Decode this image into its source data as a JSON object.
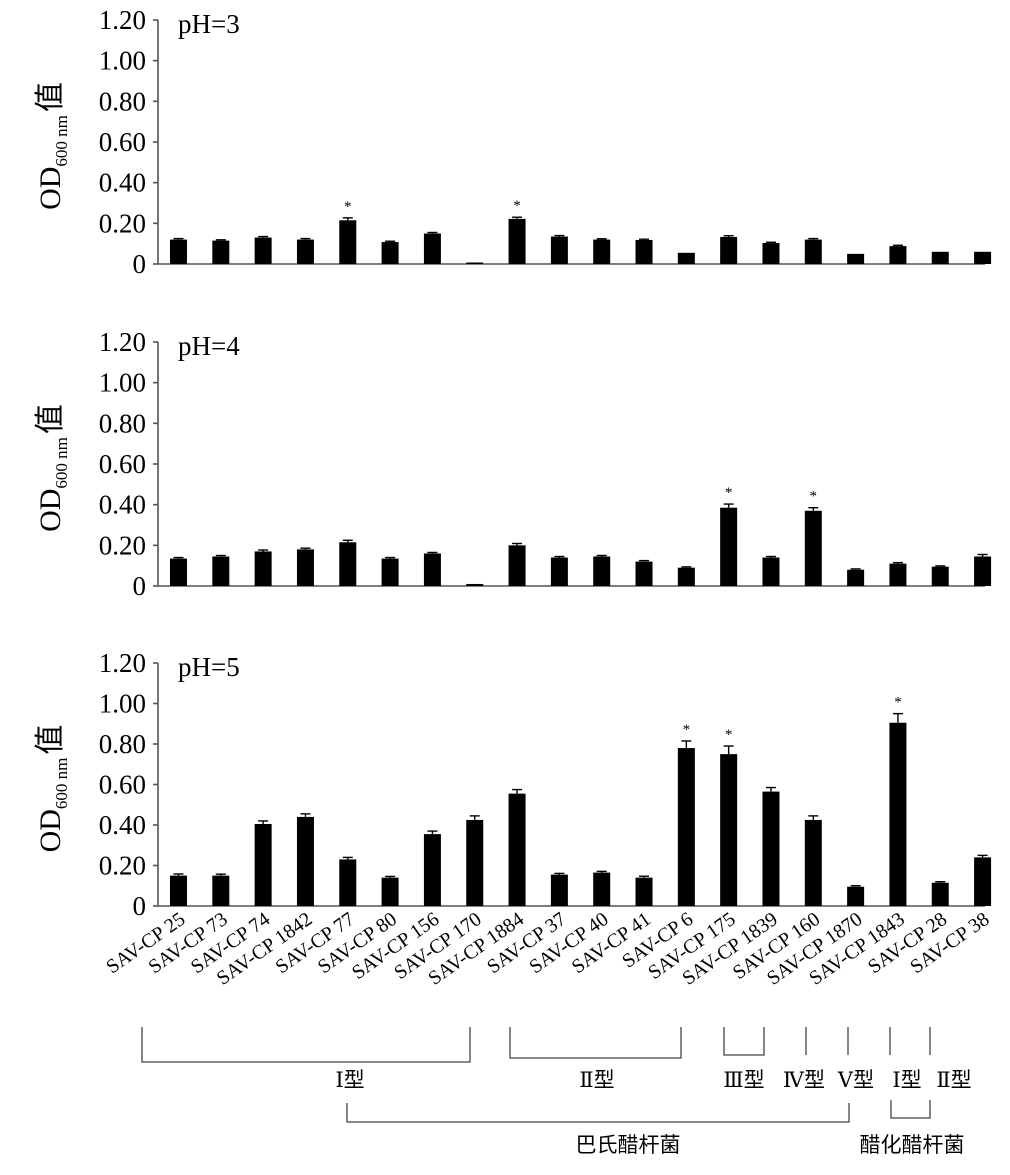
{
  "chart_data": {
    "type": "bar",
    "categories": [
      "SAV-CP 25",
      "SAV-CP 73",
      "SAV-CP 74",
      "SAV-CP 1842",
      "SAV-CP 77",
      "SAV-CP 80",
      "SAV-CP 156",
      "SAV-CP 170",
      "SAV-CP 1884",
      "SAV-CP 37",
      "SAV-CP 40",
      "SAV-CP 41",
      "SAV-CP 6",
      "SAV-CP 175",
      "SAV-CP 1839",
      "SAV-CP 160",
      "SAV-CP 1870",
      "SAV-CP 1843",
      "SAV-CP 28",
      "SAV-CP 38"
    ],
    "ylabel": {
      "main": "OD",
      "sub": "600 nm",
      "suffix": "值"
    },
    "yticks": [
      "0",
      "0.20",
      "0.40",
      "0.60",
      "0.80",
      "1.00",
      "1.20"
    ],
    "ylim": [
      0,
      1.2
    ],
    "grid": false,
    "significance_marker": "*",
    "panels": [
      {
        "label": "pH=3",
        "values": [
          0.12,
          0.115,
          0.13,
          0.12,
          0.215,
          0.108,
          0.15,
          0.005,
          0.222,
          0.135,
          0.12,
          0.118,
          0.055,
          0.133,
          0.103,
          0.12,
          0.05,
          0.088,
          0.06,
          0.06
        ],
        "errors": [
          0.005,
          0.004,
          0.005,
          0.005,
          0.012,
          0.004,
          0.005,
          0.002,
          0.008,
          0.005,
          0.004,
          0.004,
          0.003,
          0.006,
          0.004,
          0.005,
          0.003,
          0.004,
          0.003,
          0.003
        ],
        "significant": [
          4,
          8
        ]
      },
      {
        "label": "pH=4",
        "values": [
          0.135,
          0.145,
          0.17,
          0.18,
          0.215,
          0.135,
          0.16,
          0.01,
          0.2,
          0.14,
          0.145,
          0.12,
          0.09,
          0.385,
          0.14,
          0.37,
          0.08,
          0.11,
          0.095,
          0.145
        ],
        "errors": [
          0.005,
          0.005,
          0.007,
          0.006,
          0.01,
          0.005,
          0.005,
          0.002,
          0.009,
          0.005,
          0.005,
          0.005,
          0.004,
          0.018,
          0.005,
          0.015,
          0.004,
          0.005,
          0.004,
          0.01
        ],
        "significant": [
          13,
          15
        ]
      },
      {
        "label": "pH=5",
        "values": [
          0.15,
          0.15,
          0.405,
          0.44,
          0.23,
          0.14,
          0.355,
          0.425,
          0.555,
          0.155,
          0.165,
          0.14,
          0.78,
          0.75,
          0.565,
          0.425,
          0.095,
          0.905,
          0.115,
          0.24
        ],
        "errors": [
          0.008,
          0.007,
          0.015,
          0.015,
          0.01,
          0.006,
          0.015,
          0.02,
          0.02,
          0.006,
          0.006,
          0.007,
          0.035,
          0.04,
          0.02,
          0.02,
          0.005,
          0.045,
          0.005,
          0.01
        ],
        "significant": [
          12,
          13,
          17
        ]
      }
    ],
    "groupings": {
      "type_row": [
        {
          "label": "Ⅰ型",
          "from": 0,
          "to": 7
        },
        {
          "label": "Ⅱ型",
          "from": 9,
          "to": 13
        },
        {
          "label": "Ⅲ型",
          "from": 14,
          "to": 14
        },
        {
          "label": "Ⅳ型",
          "from": 15,
          "to": 15
        },
        {
          "label": "Ⅴ型",
          "from": 16,
          "to": 16
        },
        {
          "label": "Ⅰ型",
          "from": 17,
          "to": 17
        },
        {
          "label": "Ⅱ型",
          "from": 18,
          "to": 18
        }
      ],
      "species_row": [
        {
          "label": "巴氏醋杆菌",
          "from": 4,
          "to": 16
        },
        {
          "label": "醋化醋杆菌",
          "from": 17,
          "to": 18
        }
      ]
    }
  }
}
